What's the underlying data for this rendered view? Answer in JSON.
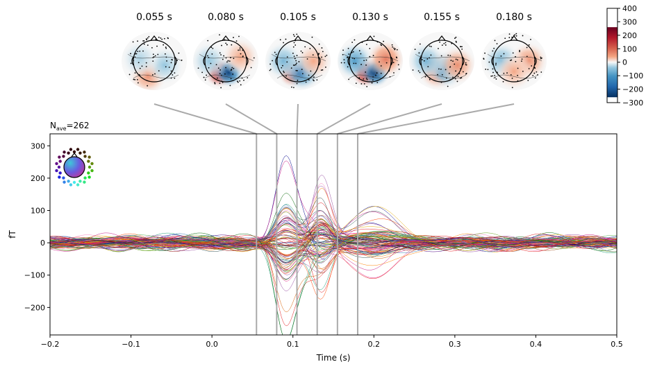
{
  "chart_data": {
    "type": "line",
    "title": "",
    "nave_label": "N",
    "nave_sub": "ave",
    "nave_value": "=262",
    "xlabel": "Time (s)",
    "ylabel": "fT",
    "xlim": [
      -0.2,
      0.5
    ],
    "ylim": [
      -285,
      337
    ],
    "xticks": [
      -0.2,
      -0.1,
      0.0,
      0.1,
      0.2,
      0.3,
      0.4,
      0.5
    ],
    "xtick_labels": [
      "−0.2",
      "−0.1",
      "0.0",
      "0.1",
      "0.2",
      "0.3",
      "0.4",
      "0.5"
    ],
    "yticks": [
      300,
      200,
      100,
      0,
      -100,
      -200
    ],
    "ytick_labels": [
      "300",
      "200",
      "100",
      "0",
      "−100",
      "−200"
    ],
    "n_channels": 102,
    "baseline_noise_ft": 20,
    "response_peaks_ft": {
      "max": 305,
      "min": -258
    },
    "topomap_times": [
      0.055,
      0.08,
      0.105,
      0.13,
      0.155,
      0.18
    ],
    "topomap_titles": [
      "0.055 s",
      "0.080 s",
      "0.105 s",
      "0.130 s",
      "0.155 s",
      "0.180 s"
    ],
    "topomap_patterns": [
      [
        {
          "hx": -0.3,
          "hy": -0.7,
          "v": 60
        },
        {
          "hx": 0.5,
          "hy": -0.2,
          "v": -40
        },
        {
          "hx": -0.7,
          "hy": 0.1,
          "v": -30
        }
      ],
      [
        {
          "hx": -0.3,
          "hy": -0.55,
          "v": 260
        },
        {
          "hx": 0.15,
          "hy": -0.55,
          "v": -230
        },
        {
          "hx": 0.7,
          "hy": 0.2,
          "v": 40
        },
        {
          "hx": -0.8,
          "hy": 0.0,
          "v": -40
        }
      ],
      [
        {
          "hx": -0.25,
          "hy": -0.55,
          "v": 200
        },
        {
          "hx": 0.2,
          "hy": -0.5,
          "v": -150
        },
        {
          "hx": -0.7,
          "hy": 0.0,
          "v": -60
        },
        {
          "hx": 0.75,
          "hy": 0.0,
          "v": 40
        }
      ],
      [
        {
          "hx": -0.2,
          "hy": -0.55,
          "v": 250
        },
        {
          "hx": 0.25,
          "hy": -0.55,
          "v": -240
        },
        {
          "hx": -0.75,
          "hy": 0.0,
          "v": -90
        },
        {
          "hx": 0.75,
          "hy": 0.1,
          "v": 80
        }
      ],
      [
        {
          "hx": -0.2,
          "hy": -0.45,
          "v": 110
        },
        {
          "hx": 0.2,
          "hy": -0.4,
          "v": -90
        },
        {
          "hx": -0.75,
          "hy": 0.0,
          "v": -60
        },
        {
          "hx": 0.75,
          "hy": -0.2,
          "v": 60
        }
      ],
      [
        {
          "hx": -0.6,
          "hy": 0.0,
          "v": -60
        },
        {
          "hx": 0.7,
          "hy": 0.0,
          "v": 60
        },
        {
          "hx": 0.0,
          "hy": -0.5,
          "v": 40
        }
      ]
    ],
    "colorbar": {
      "ticks": [
        400,
        300,
        200,
        100,
        0,
        -100,
        -200,
        -300
      ],
      "tick_labels": [
        "400",
        "300",
        "200",
        "100",
        "0",
        "−100",
        "−200",
        "−300"
      ],
      "range": [
        -300,
        400
      ],
      "color_limits": [
        -260,
        260
      ],
      "cmap": "RdBu_r"
    }
  },
  "colors": {
    "axis": "#000000",
    "timeline": "#aaaaaa"
  }
}
